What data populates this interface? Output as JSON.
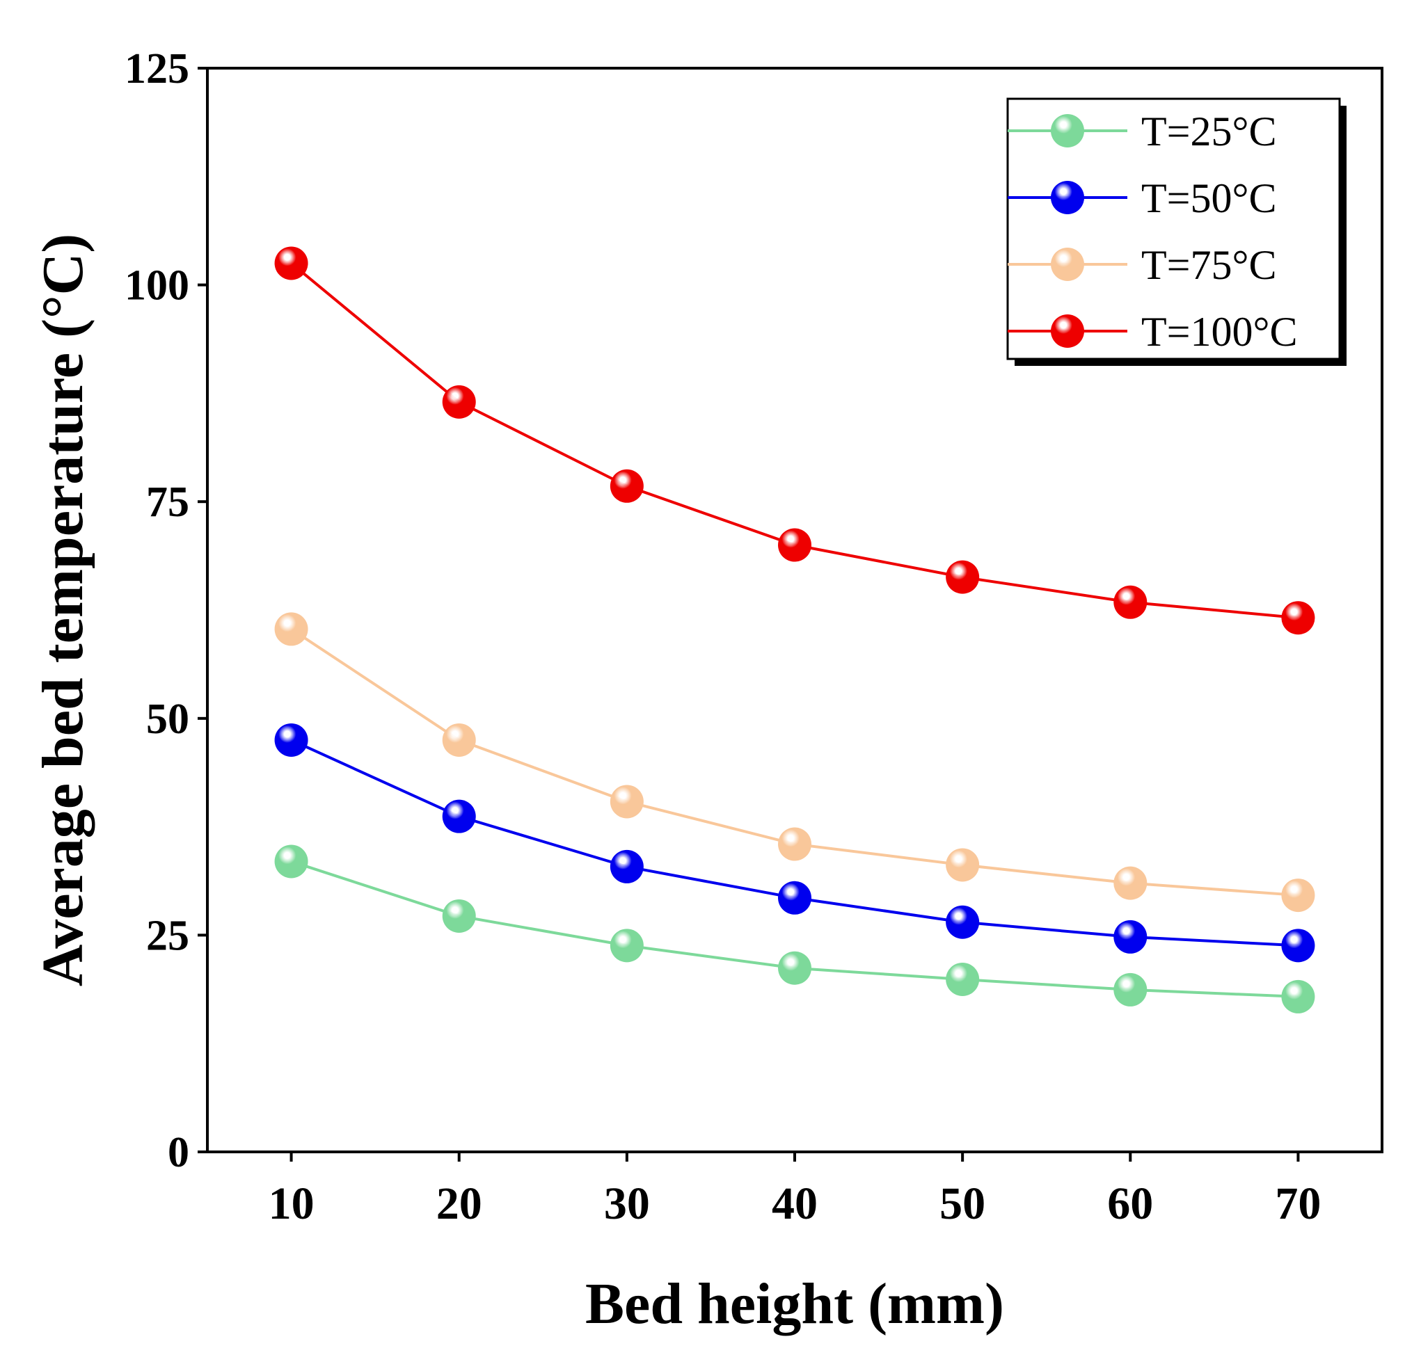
{
  "chart_data": {
    "type": "line",
    "title": "",
    "xlabel": "Bed height (mm)",
    "ylabel": "Average bed temperature (°C)",
    "x": [
      10,
      20,
      30,
      40,
      50,
      60,
      70
    ],
    "xticks": [
      "10",
      "20",
      "30",
      "40",
      "50",
      "60",
      "70"
    ],
    "xlim": [
      5,
      75
    ],
    "yticks": [
      "0",
      "25",
      "50",
      "75",
      "100",
      "125"
    ],
    "ylim": [
      0,
      125
    ],
    "legend_position": "top-right",
    "grid": false,
    "series": [
      {
        "name": "T=25°C",
        "color": "#7dd99a",
        "values": [
          33.5,
          27.2,
          23.8,
          21.2,
          19.9,
          18.7,
          17.9
        ]
      },
      {
        "name": "T=50°C",
        "color": "#0000ee",
        "values": [
          47.5,
          38.7,
          32.9,
          29.3,
          26.5,
          24.8,
          23.8
        ]
      },
      {
        "name": "T=75°C",
        "color": "#f9c79a",
        "values": [
          60.3,
          47.5,
          40.4,
          35.5,
          33.1,
          31.0,
          29.6
        ]
      },
      {
        "name": "T=100°C",
        "color": "#ee0000",
        "values": [
          102.5,
          86.5,
          76.8,
          70.0,
          66.3,
          63.4,
          61.6
        ]
      }
    ]
  }
}
